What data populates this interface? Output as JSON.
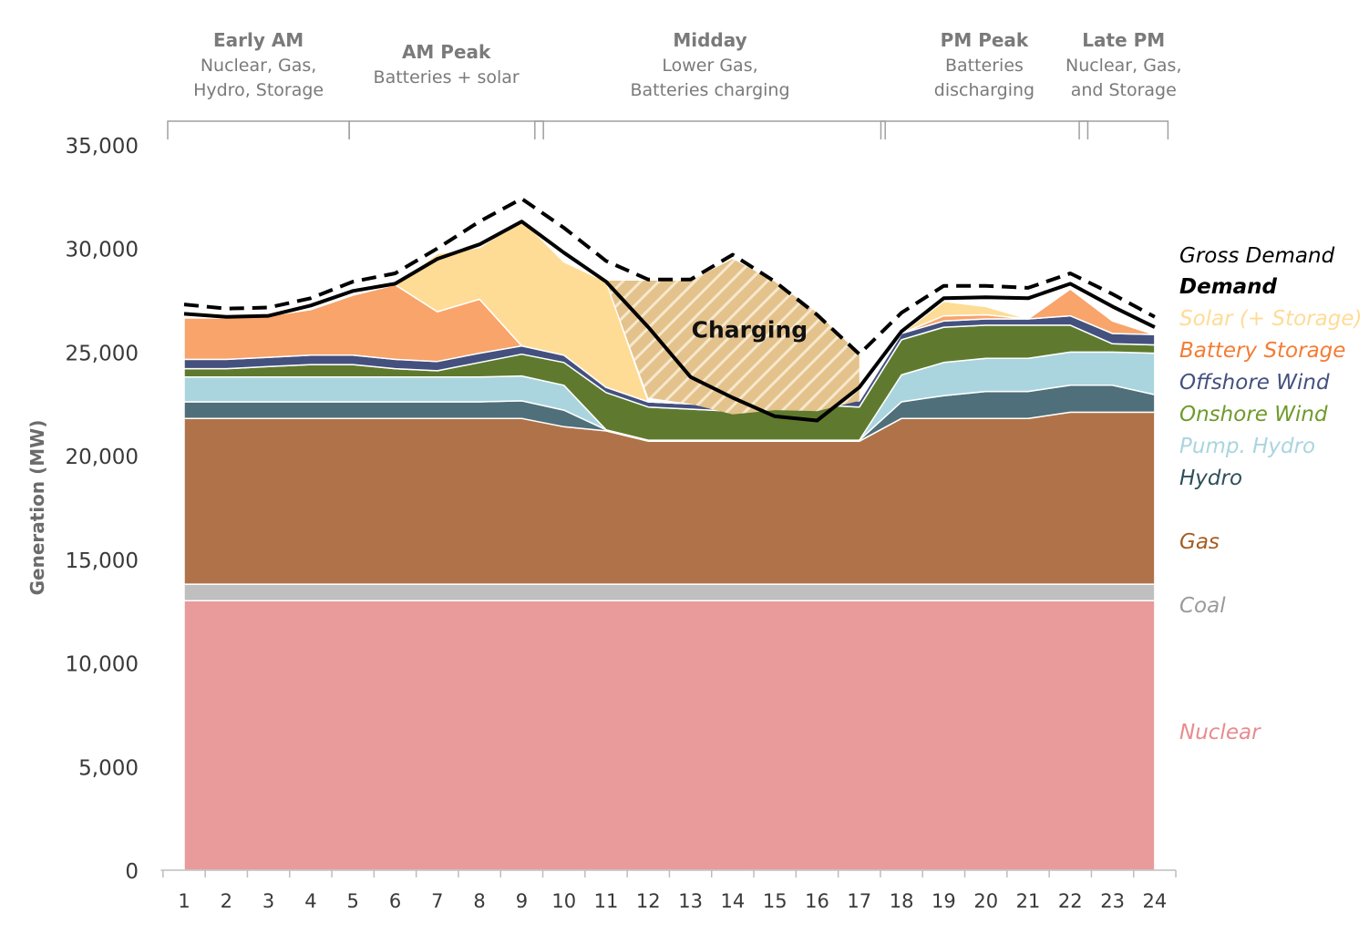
{
  "chart_data": {
    "type": "area",
    "title": "",
    "xlabel": "",
    "ylabel": "Generation (MW)",
    "x": [
      1,
      2,
      3,
      4,
      5,
      6,
      7,
      8,
      9,
      10,
      11,
      12,
      13,
      14,
      15,
      16,
      17,
      18,
      19,
      20,
      21,
      22,
      23,
      24
    ],
    "xticks": [
      "1",
      "2",
      "3",
      "4",
      "5",
      "6",
      "7",
      "8",
      "9",
      "10",
      "11",
      "12",
      "13",
      "14",
      "15",
      "16",
      "17",
      "18",
      "19",
      "20",
      "21",
      "22",
      "23",
      "24"
    ],
    "ylim": [
      0,
      35000
    ],
    "yticks": [
      0,
      5000,
      10000,
      15000,
      20000,
      25000,
      30000,
      35000
    ],
    "ytick_labels": [
      "0",
      "5,000",
      "10,000",
      "15,000",
      "20,000",
      "25,000",
      "30,000",
      "35,000"
    ],
    "grid": false,
    "legend_position": "right",
    "series": [
      {
        "name": "Nuclear",
        "color": "#e99a9b",
        "values": [
          13000,
          13000,
          13000,
          13000,
          13000,
          13000,
          13000,
          13000,
          13000,
          13000,
          13000,
          13000,
          13000,
          13000,
          13000,
          13000,
          13000,
          13000,
          13000,
          13000,
          13000,
          13000,
          13000,
          13000
        ]
      },
      {
        "name": "Coal",
        "color": "#bfbfbf",
        "values": [
          800,
          800,
          800,
          800,
          800,
          800,
          800,
          800,
          800,
          800,
          800,
          800,
          800,
          800,
          800,
          800,
          800,
          800,
          800,
          800,
          800,
          800,
          800,
          800
        ]
      },
      {
        "name": "Gas",
        "color": "#b07349",
        "values": [
          8000,
          8000,
          8000,
          8000,
          8000,
          8000,
          8000,
          8000,
          8000,
          7600,
          7400,
          6900,
          6900,
          6900,
          6900,
          6900,
          6900,
          8000,
          8000,
          8000,
          8000,
          8300,
          8300,
          8300
        ]
      },
      {
        "name": "Hydro",
        "color": "#4f6f7a",
        "values": [
          800,
          800,
          800,
          800,
          800,
          800,
          800,
          800,
          850,
          800,
          50,
          50,
          50,
          50,
          50,
          50,
          50,
          800,
          1100,
          1300,
          1300,
          1300,
          1300,
          850
        ]
      },
      {
        "name": "Pump. Hydro",
        "color": "#aad5df",
        "values": [
          1200,
          1200,
          1200,
          1200,
          1200,
          1200,
          1200,
          1200,
          1200,
          1200,
          0,
          0,
          0,
          0,
          0,
          0,
          0,
          1300,
          1600,
          1600,
          1600,
          1600,
          1600,
          2000
        ]
      },
      {
        "name": "Onshore Wind",
        "color": "#5f7a2e",
        "values": [
          400,
          400,
          500,
          600,
          600,
          400,
          300,
          700,
          1050,
          1100,
          1800,
          1600,
          1500,
          1400,
          1600,
          1700,
          1600,
          1700,
          1700,
          1600,
          1600,
          1300,
          400,
          400
        ]
      },
      {
        "name": "Offshore Wind",
        "color": "#44517f",
        "values": [
          450,
          450,
          450,
          450,
          450,
          450,
          450,
          450,
          400,
          350,
          250,
          250,
          250,
          250,
          250,
          250,
          300,
          300,
          300,
          300,
          300,
          450,
          500,
          500
        ]
      },
      {
        "name": "Battery Storage",
        "color": "#f8a46b",
        "values": [
          2000,
          2000,
          2000,
          2200,
          2900,
          3600,
          2400,
          2600,
          0,
          0,
          0,
          0,
          0,
          0,
          0,
          0,
          0,
          0,
          250,
          200,
          0,
          1300,
          600,
          0
        ]
      },
      {
        "name": "Solar (+ Storage)",
        "color": "#fedc96",
        "values": [
          0,
          0,
          0,
          0,
          0,
          0,
          2800,
          2500,
          6100,
          4500,
          5100,
          0,
          0,
          0,
          0,
          0,
          0,
          0,
          700,
          400,
          0,
          0,
          0,
          0
        ]
      }
    ],
    "charging_hatch": {
      "x": [
        11,
        12,
        13,
        14,
        15,
        16,
        17
      ],
      "bottom": [
        28450,
        22800,
        22500,
        22000,
        22200,
        22150,
        22650
      ],
      "top": [
        28450,
        28450,
        28450,
        29500,
        28400,
        26900,
        24900
      ]
    },
    "lines": [
      {
        "name": "Gross Demand",
        "style": "dashed",
        "color": "#000000",
        "values": [
          27300,
          27100,
          27150,
          27600,
          28400,
          28800,
          30000,
          31300,
          32400,
          31000,
          29400,
          28500,
          28500,
          29700,
          28400,
          26800,
          24900,
          26900,
          28200,
          28200,
          28100,
          28800,
          27800,
          26700
        ]
      },
      {
        "name": "Demand",
        "style": "solid",
        "color": "#000000",
        "values": [
          26850,
          26700,
          26750,
          27250,
          27950,
          28300,
          29500,
          30200,
          31300,
          29800,
          28400,
          26200,
          23800,
          22800,
          21900,
          21700,
          23300,
          26000,
          27600,
          27650,
          27600,
          28300,
          27200,
          26200
        ]
      }
    ],
    "legend": [
      {
        "label": "Gross Demand",
        "color": "#000000",
        "bold": false
      },
      {
        "label": "Demand",
        "color": "#000000",
        "bold": true
      },
      {
        "label": "Solar (+ Storage)",
        "color": "#fedc96",
        "bold": false
      },
      {
        "label": "Battery Storage",
        "color": "#f47c34",
        "bold": false
      },
      {
        "label": "Offshore Wind",
        "color": "#44517f",
        "bold": false
      },
      {
        "label": "Onshore Wind",
        "color": "#6f9a2a",
        "bold": false
      },
      {
        "label": "Pump. Hydro",
        "color": "#aad5df",
        "bold": false
      },
      {
        "label": "Hydro",
        "color": "#2f4f5a",
        "bold": false
      },
      {
        "label": "Gas",
        "color": "#a75c1f",
        "bold": false
      },
      {
        "label": "Coal",
        "color": "#9a9a9a",
        "bold": false
      },
      {
        "label": "Nuclear",
        "color": "#e98b8f",
        "bold": false
      }
    ],
    "annotations": [
      {
        "text": "Charging",
        "x": 14.4,
        "y": 25700
      }
    ],
    "periods": [
      {
        "title": "Early AM",
        "lines": [
          "Nuclear, Gas,",
          "Hydro, Storage"
        ],
        "x_start": 1,
        "x_end": 5.0
      },
      {
        "title": "AM Peak",
        "lines": [
          "Batteries + solar"
        ],
        "x_start": 5.3,
        "x_end": 9.6
      },
      {
        "title": "Midday",
        "lines": [
          "Lower Gas,",
          "Batteries charging"
        ],
        "x_start": 9.7,
        "x_end": 17.7
      },
      {
        "title": "PM Peak",
        "lines": [
          "Batteries",
          "discharging"
        ],
        "x_start": 17.9,
        "x_end": 22.5
      },
      {
        "title": "Late PM",
        "lines": [
          "Nuclear, Gas,",
          "and Storage"
        ],
        "x_start": 22.6,
        "x_end": 24.4
      }
    ]
  }
}
